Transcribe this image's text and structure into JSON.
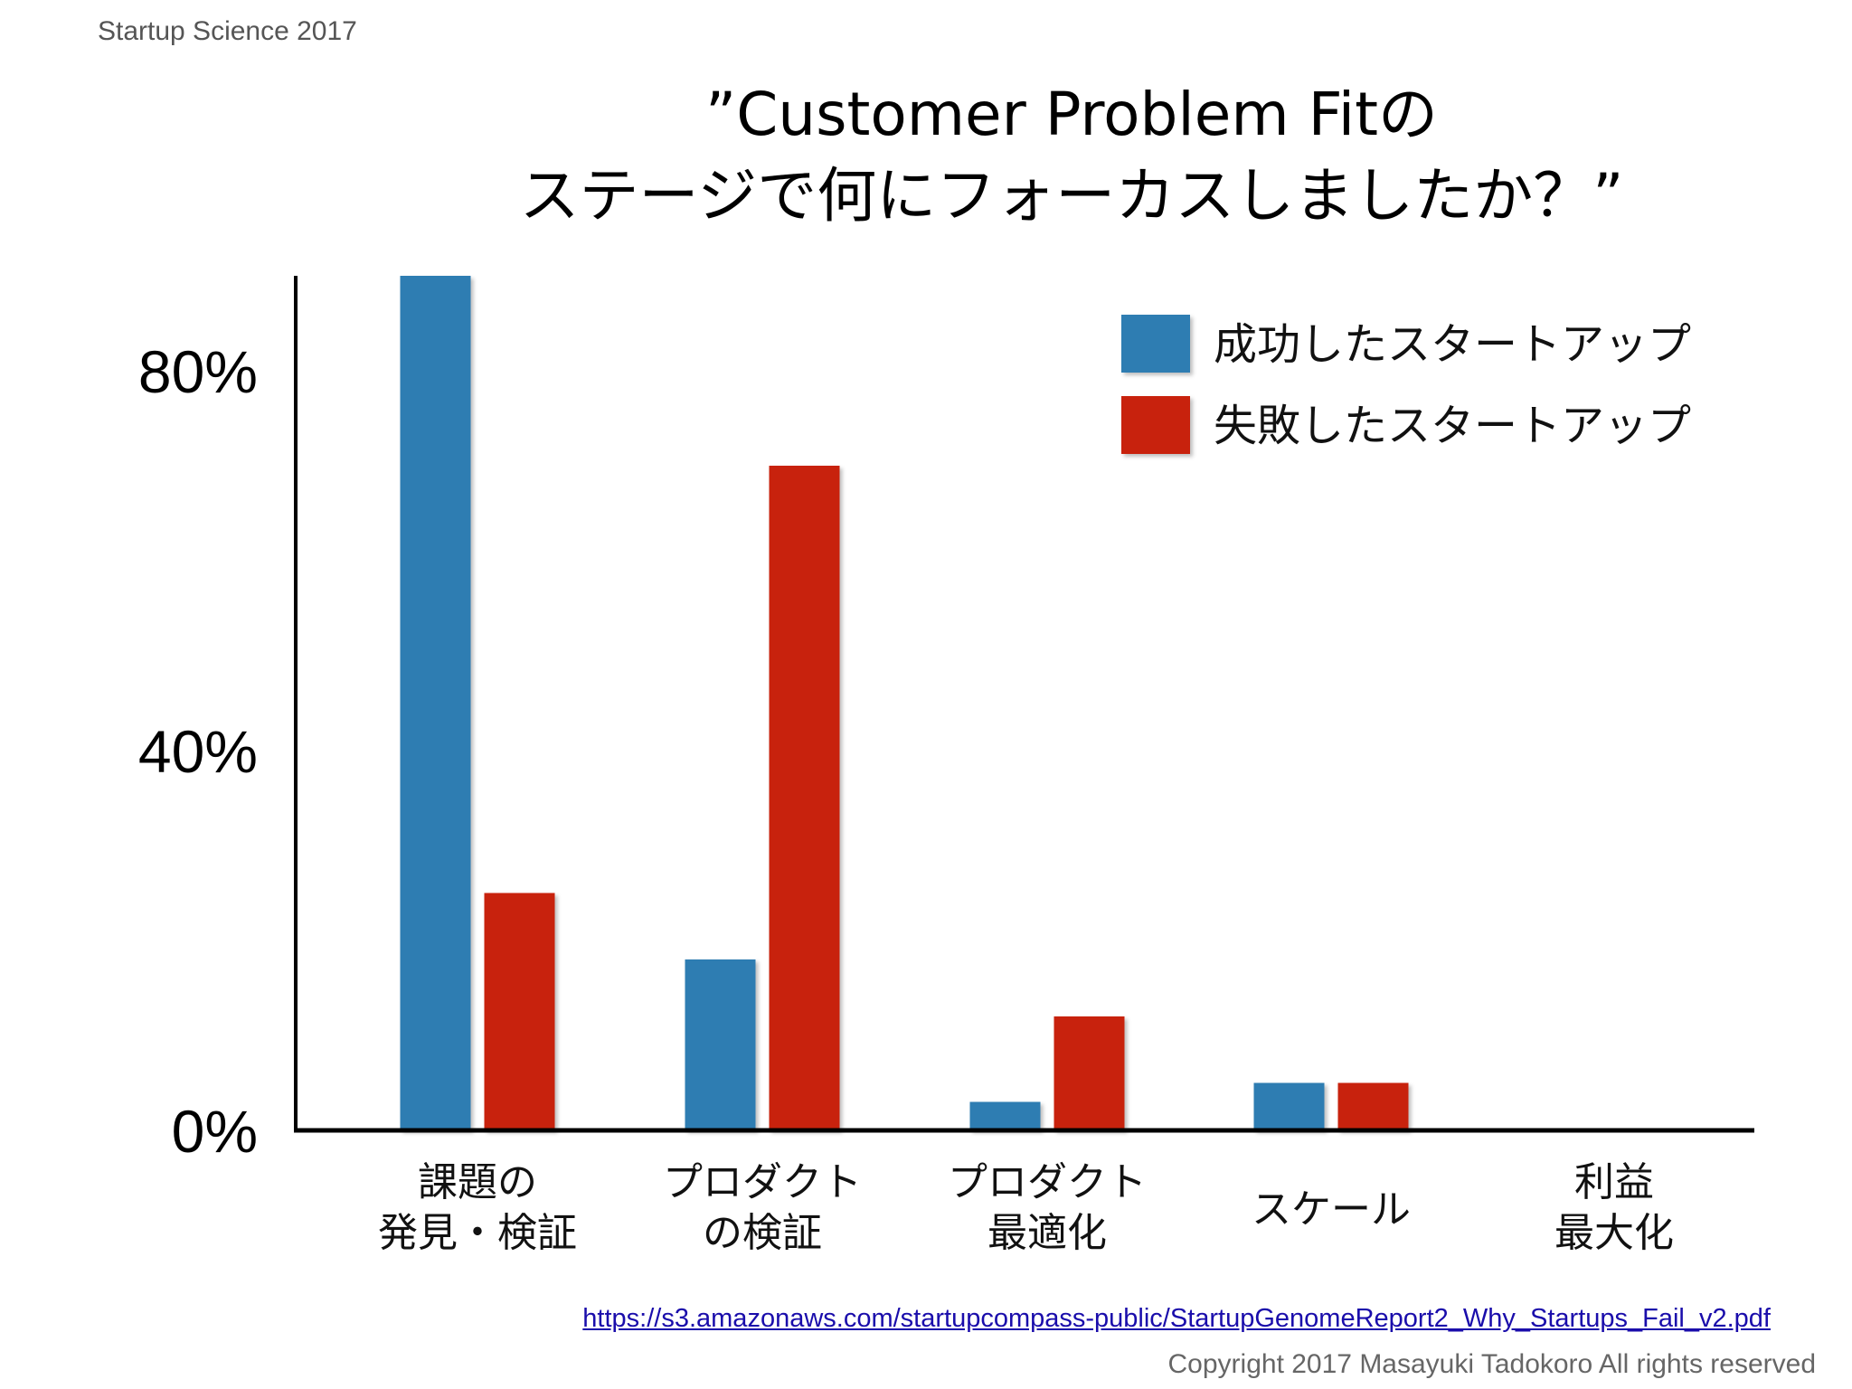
{
  "header": {
    "label": "Startup Science 2017"
  },
  "chart_data": {
    "type": "bar",
    "title_lines": [
      "”Customer Problem Fitの",
      "ステージで何にフォーカスしましたか？”"
    ],
    "categories": [
      [
        "課題の",
        "発見・検証"
      ],
      [
        "プロダクト",
        "の検証"
      ],
      [
        "プロダクト",
        "最適化"
      ],
      [
        "スケール"
      ],
      [
        "利益",
        "最大化"
      ]
    ],
    "series": [
      {
        "name": "成功したスタートアップ",
        "color": "#2f7db2",
        "values": [
          90,
          18,
          3,
          5,
          0
        ]
      },
      {
        "name": "失敗したスタートアップ",
        "color": "#c8240a",
        "values": [
          25,
          70,
          12,
          5,
          0
        ]
      }
    ],
    "yticks": [
      {
        "value": 0,
        "label": "0%"
      },
      {
        "value": 40,
        "label": "40%"
      },
      {
        "value": 80,
        "label": "80%"
      }
    ],
    "ylim": [
      0,
      90
    ],
    "legend_position": "top-right",
    "grid": false
  },
  "footer": {
    "source_url": "https://s3.amazonaws.com/startupcompass-public/StartupGenomeReport2_Why_Startups_Fail_v2.pdf",
    "copyright": "Copyright 2017 Masayuki Tadokoro All rights reserved"
  }
}
